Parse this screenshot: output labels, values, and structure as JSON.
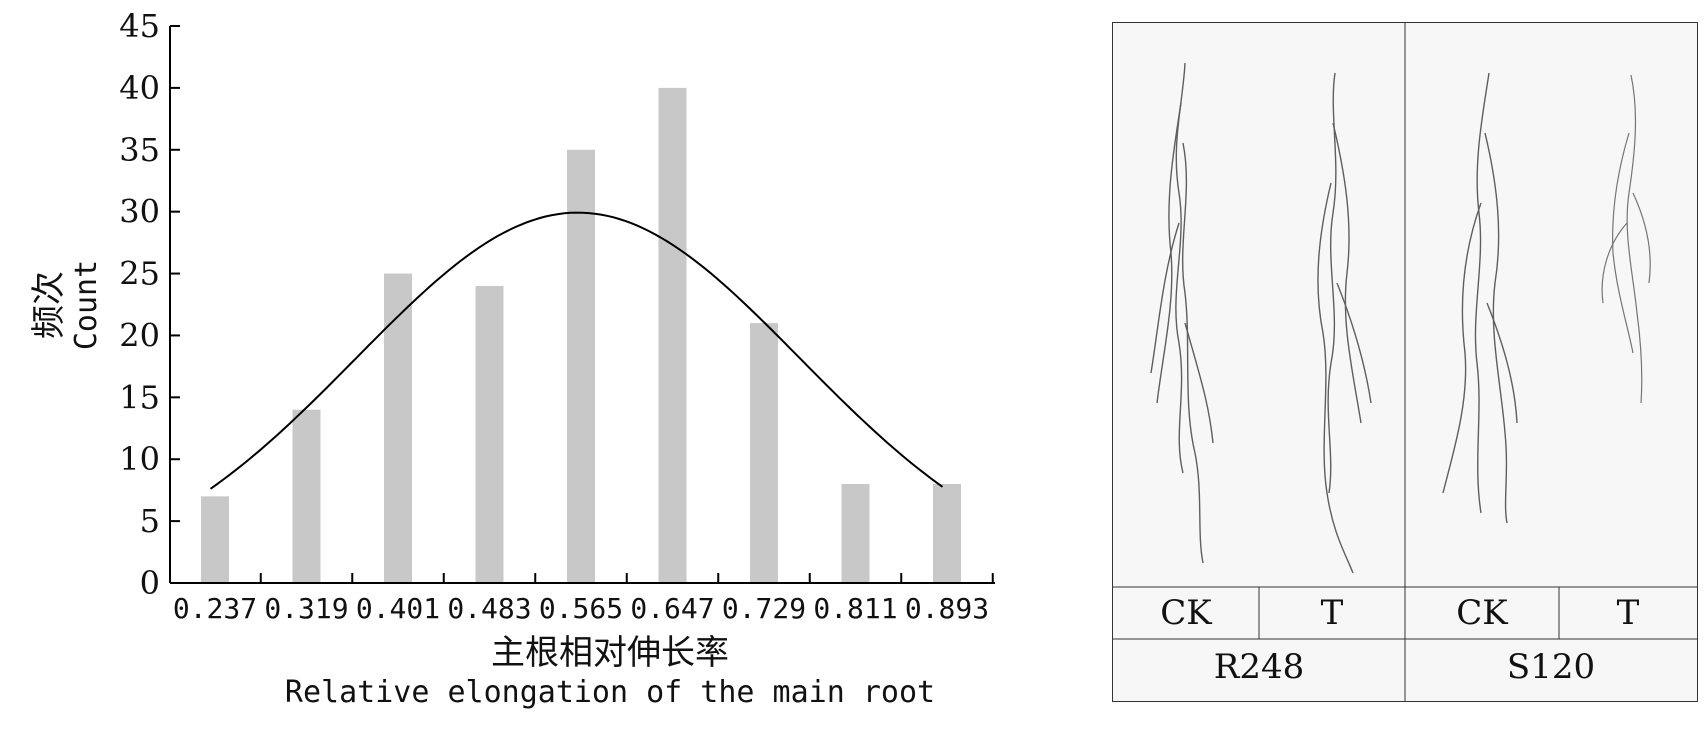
{
  "chart_data": {
    "type": "bar",
    "categories": [
      "0.237",
      "0.319",
      "0.401",
      "0.483",
      "0.565",
      "0.647",
      "0.729",
      "0.811",
      "0.893"
    ],
    "values": [
      7,
      14,
      25,
      24,
      35,
      40,
      21,
      8,
      8
    ],
    "curve": "normal-fit",
    "ylim": [
      0,
      45
    ],
    "yticks": [
      0,
      5,
      10,
      15,
      20,
      25,
      30,
      35,
      40,
      45
    ],
    "xlabel_cn": "主根相对伸长率",
    "xlabel_en": "Relative elongation of the main root",
    "ylabel_cn": "频次",
    "ylabel_en": "Count",
    "bar_color": "#c8c8c8",
    "grid": false
  },
  "photo_panel": {
    "treatments": [
      "CK",
      "T",
      "CK",
      "T"
    ],
    "varieties": [
      "R248",
      "S120"
    ]
  }
}
